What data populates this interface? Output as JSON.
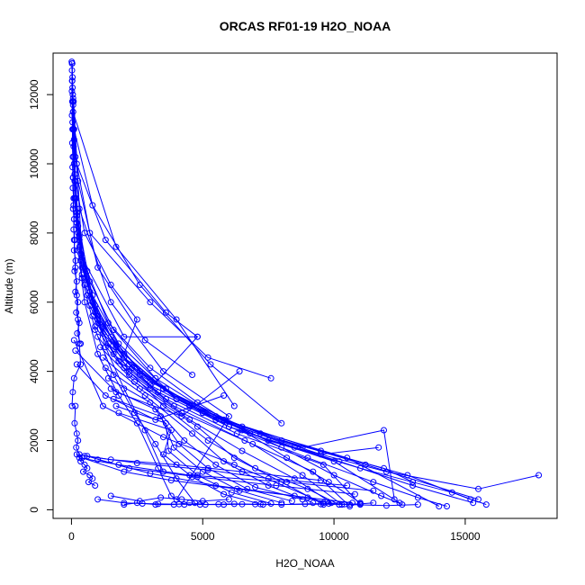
{
  "chart_data": {
    "type": "line",
    "title": "ORCAS RF01-19 H2O_NOAA",
    "xlabel": "H2O_NOAA",
    "ylabel": "Altitude (m)",
    "xlim": [
      -700,
      18500
    ],
    "ylim": [
      -250,
      13200
    ],
    "x_ticks": [
      0,
      5000,
      10000,
      15000
    ],
    "x_tick_labels": [
      "0",
      "5000",
      "10000",
      "15000"
    ],
    "y_ticks": [
      0,
      2000,
      4000,
      6000,
      8000,
      10000,
      12000
    ],
    "y_tick_labels": [
      "0",
      "2000",
      "4000",
      "6000",
      "8000",
      "10000",
      "12000"
    ],
    "grid": false,
    "legend": "none",
    "marker": "open-circle",
    "color": "#0000ff",
    "series": [
      {
        "x": [
          30,
          60,
          120,
          250,
          500,
          1000,
          1800,
          2500,
          3300,
          3800,
          4300
        ],
        "y": [
          12900,
          11000,
          9000,
          7500,
          6000,
          4500,
          3300,
          2500,
          1200,
          400,
          150
        ]
      },
      {
        "x": [
          40,
          90,
          200,
          400,
          900,
          1600,
          2400,
          3200,
          4000,
          4700
        ],
        "y": [
          12500,
          10200,
          8300,
          6700,
          5200,
          3900,
          2800,
          1900,
          900,
          200
        ]
      },
      {
        "x": [
          50,
          150,
          300,
          700,
          1300,
          2000,
          2800,
          3500
        ],
        "y": [
          11800,
          9500,
          7900,
          6300,
          4700,
          3500,
          2300,
          1100
        ]
      },
      {
        "x": [
          60,
          180,
          450,
          1000,
          2200,
          3500,
          5200,
          7000,
          9000,
          10200
        ],
        "y": [
          11500,
          9000,
          7000,
          5500,
          4000,
          3000,
          2000,
          1200,
          600,
          150
        ]
      },
      {
        "x": [
          70,
          200,
          600,
          1400,
          3000,
          4800,
          6500,
          8200,
          9800,
          11000
        ],
        "y": [
          11000,
          8600,
          6900,
          5400,
          4100,
          3100,
          2300,
          1500,
          800,
          200
        ]
      },
      {
        "x": [
          80,
          250,
          700,
          1600,
          3200,
          5500,
          8000,
          10000,
          11800,
          12600
        ],
        "y": [
          10500,
          8200,
          6600,
          5200,
          3800,
          2700,
          1800,
          1000,
          400,
          150
        ]
      },
      {
        "x": [
          100,
          300,
          800,
          1800,
          3600,
          6000,
          9000,
          11500,
          13200,
          14300
        ],
        "y": [
          10000,
          7800,
          6200,
          4800,
          3500,
          2400,
          1500,
          800,
          350,
          100
        ]
      },
      {
        "x": [
          120,
          350,
          900,
          2000,
          4000,
          6800,
          10200,
          13000,
          15300
        ],
        "y": [
          9500,
          7400,
          5900,
          4500,
          3200,
          2200,
          1400,
          700,
          200
        ]
      },
      {
        "x": [
          150,
          400,
          1000,
          2200,
          4500,
          7500,
          11000,
          14500,
          15800
        ],
        "y": [
          9000,
          7000,
          5600,
          4200,
          3000,
          2000,
          1200,
          500,
          150
        ]
      },
      {
        "x": [
          200,
          500,
          1200,
          2600,
          5000,
          8500,
          12000,
          15500,
          17800
        ],
        "y": [
          8500,
          6700,
          5300,
          4000,
          2800,
          1800,
          1100,
          600,
          1000
        ]
      },
      {
        "x": [
          250,
          700,
          1500,
          3000,
          5800,
          9500,
          12800,
          15200
        ],
        "y": [
          8000,
          6300,
          5000,
          3700,
          2600,
          1700,
          1000,
          300
        ]
      },
      {
        "x": [
          300,
          800,
          1700,
          3500,
          6500,
          10500,
          14000
        ],
        "y": [
          7600,
          6000,
          4700,
          3500,
          2400,
          1500,
          100
        ]
      },
      {
        "x": [
          350,
          900,
          2000,
          4000,
          7200,
          11200,
          15500
        ],
        "y": [
          7200,
          5700,
          4400,
          3200,
          2200,
          1300,
          300
        ]
      },
      {
        "x": [
          400,
          1000,
          2300,
          4500,
          8000,
          11900,
          13000
        ],
        "y": [
          6800,
          5400,
          4100,
          3000,
          2000,
          1200,
          800
        ]
      },
      {
        "x": [
          500,
          1200,
          2600,
          5000,
          8800,
          11900,
          12300
        ],
        "y": [
          6500,
          5100,
          3900,
          2800,
          1800,
          2300,
          300
        ]
      },
      {
        "x": [
          600,
          1400,
          3000,
          5500,
          9500,
          11700
        ],
        "y": [
          6200,
          4800,
          3600,
          2600,
          1600,
          1800
        ]
      },
      {
        "x": [
          700,
          1600,
          3300,
          6000,
          10000,
          12500
        ],
        "y": [
          5900,
          4500,
          3400,
          2400,
          1400,
          200
        ]
      },
      {
        "x": [
          800,
          1800,
          3600,
          6300,
          9600,
          11000
        ],
        "y": [
          5600,
          4300,
          3200,
          2200,
          1300,
          150
        ]
      },
      {
        "x": [
          900,
          2000,
          3900,
          6600,
          9200,
          10600
        ],
        "y": [
          5300,
          4100,
          3000,
          2000,
          1100,
          100
        ]
      },
      {
        "x": [
          1000,
          2200,
          4200,
          6900,
          8800,
          10300
        ],
        "y": [
          5000,
          3900,
          2800,
          1900,
          1000,
          150
        ]
      },
      {
        "x": [
          1100,
          2400,
          4500,
          6500,
          8500,
          9900
        ],
        "y": [
          4700,
          3700,
          2600,
          1700,
          900,
          200
        ]
      },
      {
        "x": [
          1200,
          2600,
          4800,
          6200,
          8000,
          9600
        ],
        "y": [
          4400,
          3500,
          2400,
          1500,
          800,
          150
        ]
      },
      {
        "x": [
          1300,
          2800,
          4600,
          5800,
          7500,
          9200
        ],
        "y": [
          4100,
          3300,
          2200,
          1400,
          700,
          200
        ]
      },
      {
        "x": [
          1400,
          3000,
          4300,
          5500,
          7000,
          8800
        ],
        "y": [
          3800,
          3100,
          2000,
          1300,
          650,
          300
        ]
      },
      {
        "x": [
          1500,
          3200,
          4100,
          5200,
          6700,
          8400
        ],
        "y": [
          3500,
          2900,
          1900,
          1200,
          600,
          250
        ]
      },
      {
        "x": [
          1600,
          3400,
          3900,
          5000,
          6400,
          8000
        ],
        "y": [
          3200,
          2700,
          1800,
          1100,
          550,
          200
        ]
      },
      {
        "x": [
          1700,
          3600,
          3700,
          4800,
          6100,
          7600
        ],
        "y": [
          3000,
          2500,
          1700,
          1000,
          500,
          180
        ]
      },
      {
        "x": [
          1800,
          3800,
          3500,
          4600,
          5800,
          7200
        ],
        "y": [
          2800,
          2300,
          1600,
          950,
          450,
          160
        ]
      },
      {
        "x": [
          200,
          1500,
          4000,
          6500,
          9500
        ],
        "y": [
          1600,
          1450,
          1300,
          1100,
          850
        ]
      },
      {
        "x": [
          500,
          2500,
          5200,
          7500,
          10500
        ],
        "y": [
          1550,
          1350,
          1150,
          900,
          700
        ]
      },
      {
        "x": [
          300,
          1800,
          4500,
          8200,
          11500
        ],
        "y": [
          1500,
          1300,
          1000,
          800,
          550
        ]
      },
      {
        "x": [
          600,
          2200,
          4800,
          7800,
          10800
        ],
        "y": [
          1550,
          1200,
          950,
          700,
          450
        ]
      },
      {
        "x": [
          400,
          2000,
          3800,
          6300,
          9000,
          10700
        ],
        "y": [
          1500,
          1100,
          850,
          600,
          350,
          200
        ]
      },
      {
        "x": [
          1000,
          3000,
          5500,
          8500,
          10200
        ],
        "y": [
          1450,
          1050,
          700,
          400,
          150
        ]
      },
      {
        "x": [
          100,
          1200,
          3500,
          6200,
          9600
        ],
        "y": [
          4900,
          3000,
          2100,
          1300,
          200
        ]
      },
      {
        "x": [
          150,
          1700,
          4200,
          6400
        ],
        "y": [
          4600,
          3400,
          2700,
          4000
        ]
      },
      {
        "x": [
          200,
          1300,
          3200,
          5800
        ],
        "y": [
          4200,
          3300,
          2600,
          3300
        ]
      },
      {
        "x": [
          60,
          300,
          1500,
          3500,
          6000,
          4000
        ],
        "y": [
          11900,
          8700,
          6000,
          4000,
          2700,
          300
        ]
      },
      {
        "x": [
          80,
          400,
          2000,
          4800,
          3000
        ],
        "y": [
          11800,
          7300,
          5000,
          5000,
          3500
        ]
      },
      {
        "x": [
          100,
          250,
          1000,
          2800,
          4600
        ],
        "y": [
          10700,
          9500,
          7000,
          4900,
          3900
        ]
      },
      {
        "x": [
          120,
          500,
          1500,
          2500,
          2000
        ],
        "y": [
          9700,
          8000,
          6500,
          5500,
          4500
        ]
      },
      {
        "x": [
          30,
          60,
          1700,
          4000,
          6200
        ],
        "y": [
          12400,
          11500,
          7600,
          5500,
          3000
        ]
      },
      {
        "x": [
          40,
          100,
          800,
          2600,
          5300,
          8000
        ],
        "y": [
          12200,
          11000,
          8800,
          6500,
          4200,
          2500
        ]
      },
      {
        "x": [
          50,
          200,
          1300,
          3600,
          4800
        ],
        "y": [
          12000,
          10000,
          7800,
          5700,
          5000
        ]
      },
      {
        "x": [
          60,
          150,
          700,
          3000,
          5200,
          7600
        ],
        "y": [
          11700,
          10200,
          8000,
          6000,
          4400,
          3800
        ]
      },
      {
        "x": [
          1000,
          2000,
          2700,
          3300,
          4100,
          4900,
          5600,
          6200,
          7000,
          8000,
          8900,
          9800,
          10400,
          11000,
          11500
        ],
        "y": [
          300,
          200,
          180,
          170,
          160,
          150,
          160,
          170,
          160,
          150,
          170,
          180,
          160,
          170,
          200
        ]
      },
      {
        "x": [
          2000,
          2500,
          3200,
          3900,
          4500,
          5100,
          5800,
          6500,
          7300,
          9500,
          10600,
          12000,
          13200
        ],
        "y": [
          150,
          200,
          150,
          150,
          200,
          150,
          150,
          160,
          150,
          160,
          150,
          120,
          150
        ]
      },
      {
        "x": [
          1500,
          2600,
          3400,
          4200,
          5000,
          6000
        ],
        "y": [
          400,
          250,
          350,
          300,
          250,
          300
        ]
      },
      {
        "x": [
          10,
          20,
          25,
          15,
          30,
          20,
          40,
          30,
          50,
          40,
          60,
          50,
          80,
          60,
          100,
          80,
          130,
          100,
          160,
          120,
          200,
          150,
          250,
          180,
          300,
          220,
          350
        ],
        "y": [
          12950,
          12700,
          12400,
          12100,
          11800,
          11400,
          11000,
          10600,
          10200,
          9900,
          9600,
          9300,
          9000,
          8700,
          8400,
          8100,
          7800,
          7500,
          7200,
          6900,
          6600,
          6300,
          6000,
          5700,
          5400,
          5100,
          4800
        ]
      },
      {
        "x": [
          20,
          40,
          60,
          80,
          100,
          150,
          200,
          250,
          300,
          350,
          100,
          50,
          20
        ],
        "y": [
          12900,
          11200,
          9600,
          8800,
          7800,
          7000,
          6200,
          5500,
          4800,
          4200,
          3800,
          3400,
          3000
        ]
      },
      {
        "x": [
          150,
          120,
          200,
          250,
          180,
          300,
          400,
          350,
          500,
          600,
          450,
          700,
          800,
          650,
          900
        ],
        "y": [
          3000,
          2500,
          2200,
          2000,
          1800,
          1600,
          1500,
          1400,
          1300,
          1200,
          1100,
          1000,
          900,
          800,
          700
        ]
      }
    ]
  }
}
